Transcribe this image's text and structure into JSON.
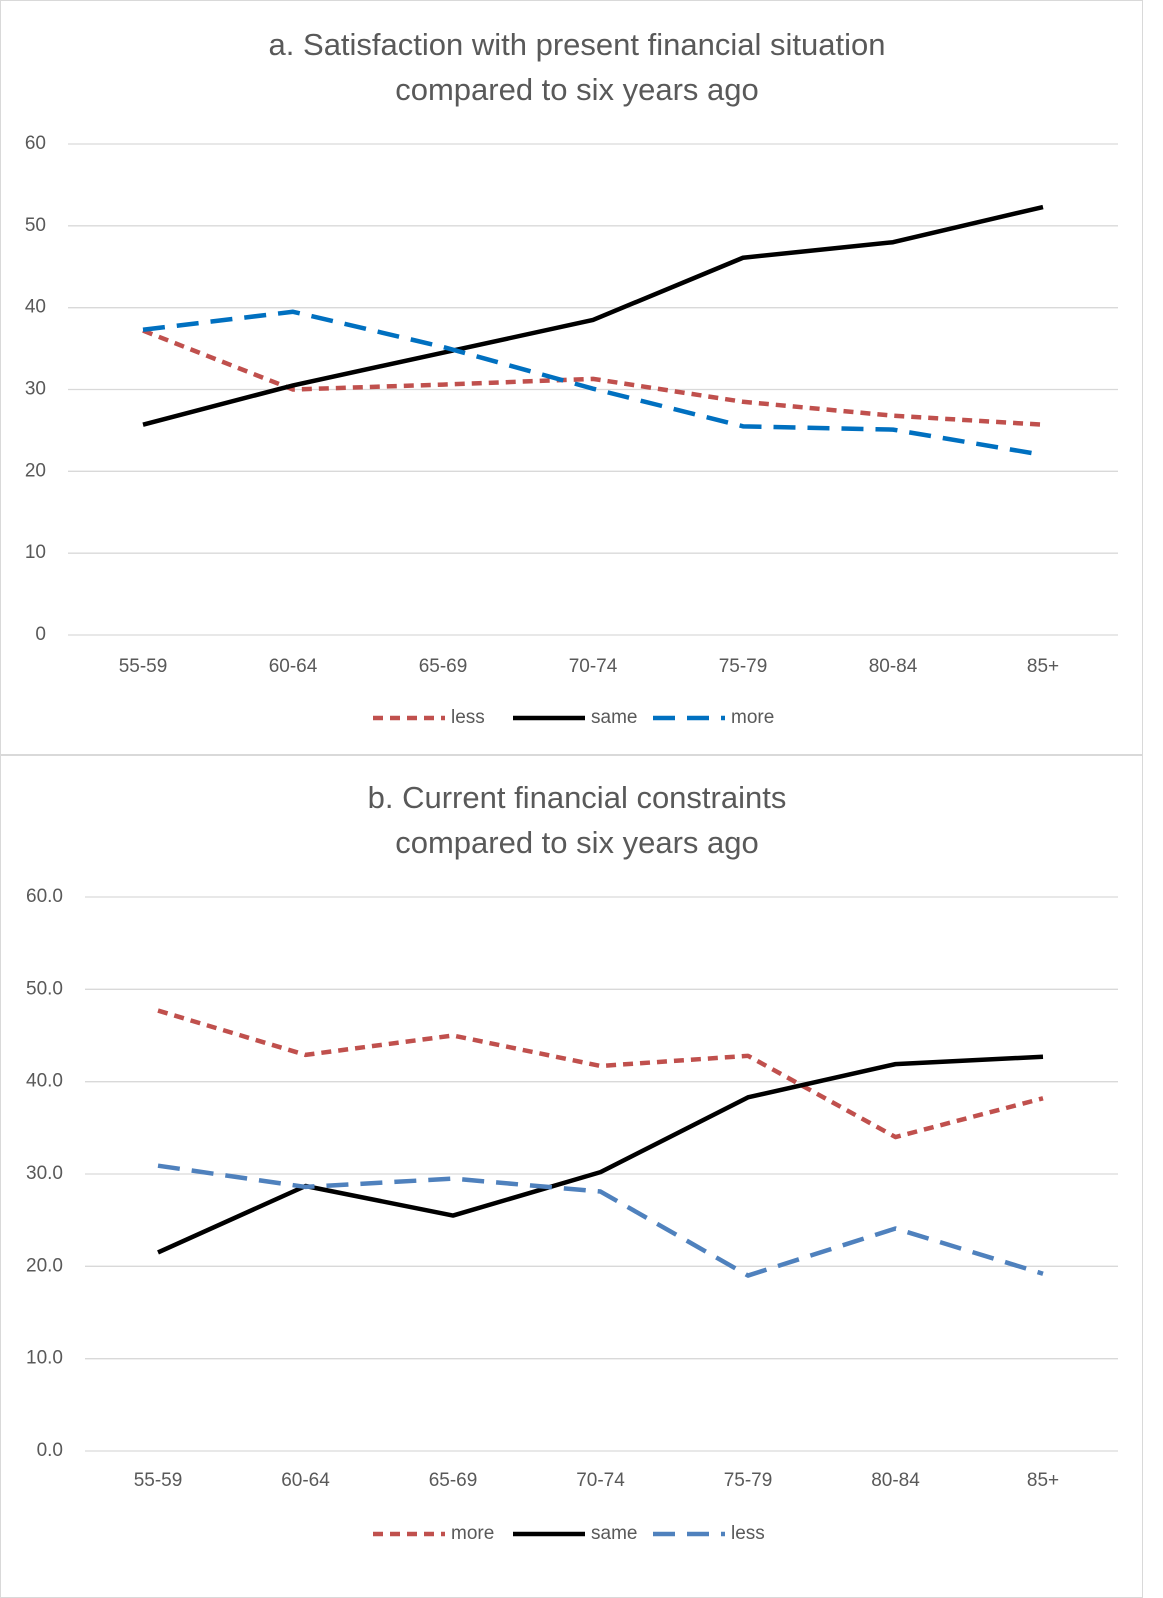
{
  "chart_data": [
    {
      "type": "line",
      "title": [
        "a. Satisfaction with present financial situation",
        "compared to six years ago"
      ],
      "categories": [
        "55-59",
        "60-64",
        "65-69",
        "70-74",
        "75-79",
        "80-84",
        "85+"
      ],
      "series": [
        {
          "name": "less",
          "color": "#c0504d",
          "dash": "dotted",
          "values": [
            37.2,
            30.0,
            30.6,
            31.3,
            28.5,
            26.8,
            25.7
          ]
        },
        {
          "name": "same",
          "color": "#000000",
          "dash": "solid",
          "values": [
            25.7,
            30.5,
            34.5,
            38.5,
            46.1,
            48.0,
            52.3
          ]
        },
        {
          "name": "more",
          "color": "#0070c0",
          "dash": "dashed",
          "values": [
            37.3,
            39.5,
            35.2,
            30.1,
            25.5,
            25.1,
            22.0
          ]
        }
      ],
      "ylim": [
        0,
        60
      ],
      "yticks": [
        0,
        10,
        20,
        30,
        40,
        50,
        60
      ],
      "grid": true,
      "legend": "bottom"
    },
    {
      "type": "line",
      "title": [
        "b. Current financial constraints",
        "compared to six years ago"
      ],
      "categories": [
        "55-59",
        "60-64",
        "65-69",
        "70-74",
        "75-79",
        "80-84",
        "85+"
      ],
      "series": [
        {
          "name": "more",
          "color": "#c0504d",
          "dash": "dotted",
          "values": [
            47.7,
            42.9,
            45.0,
            41.7,
            42.8,
            34.0,
            38.2
          ]
        },
        {
          "name": "same",
          "color": "#000000",
          "dash": "solid",
          "values": [
            21.5,
            28.7,
            25.5,
            30.2,
            38.3,
            41.9,
            42.7
          ]
        },
        {
          "name": "less",
          "color": "#4f81bd",
          "dash": "dashed",
          "values": [
            30.9,
            28.6,
            29.5,
            28.1,
            19.0,
            24.1,
            19.2
          ]
        }
      ],
      "ylim": [
        0,
        60
      ],
      "yticks": [
        {
          "value": 0,
          "label": "0.0"
        },
        {
          "value": 10,
          "label": "10.0"
        },
        {
          "value": 20,
          "label": "20.0"
        },
        {
          "value": 30,
          "label": "30.0"
        },
        {
          "value": 40,
          "label": "40.0"
        },
        {
          "value": 50,
          "label": "50.0"
        },
        {
          "value": 60,
          "label": "60.0"
        }
      ],
      "grid": true,
      "legend": "bottom"
    }
  ]
}
